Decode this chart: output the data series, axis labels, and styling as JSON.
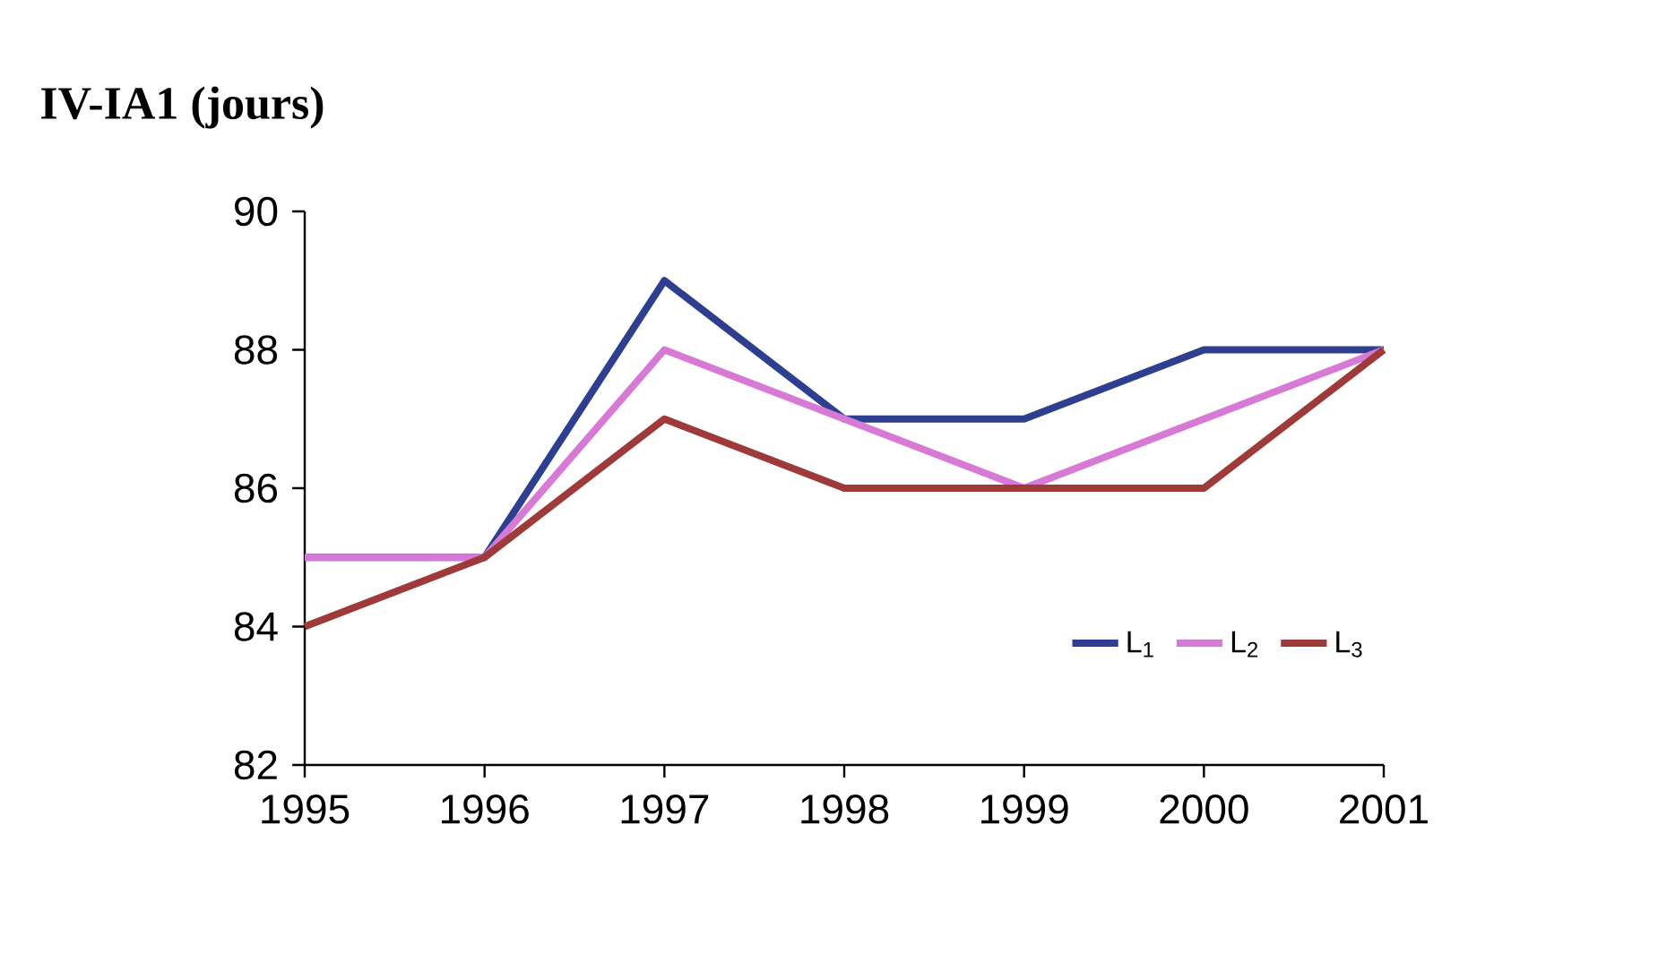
{
  "chart_data": {
    "type": "line",
    "title": "IV-IA1 (jours)",
    "x": [
      1995,
      1996,
      1997,
      1998,
      1999,
      2000,
      2001
    ],
    "xlim": [
      1995,
      2001
    ],
    "xticks": [
      1995,
      1996,
      1997,
      1998,
      1999,
      2000,
      2001
    ],
    "ylim": [
      82,
      90
    ],
    "yticks": [
      82,
      84,
      86,
      88,
      90
    ],
    "series": [
      {
        "name": "L$_{1}$",
        "color": "#2e3f8f",
        "values": [
          85,
          85,
          89,
          87,
          87,
          88,
          88
        ]
      },
      {
        "name": "L$_{2}$",
        "color": "#d67ad6",
        "values": [
          85,
          85,
          88,
          87,
          86,
          87,
          88
        ]
      },
      {
        "name": "L$_{3}$",
        "color": "#9e3a3a",
        "values": [
          84,
          85,
          87,
          86,
          86,
          86,
          88
        ]
      }
    ],
    "legend": "bottom right",
    "grid": false,
    "marker": "none",
    "line_style": "solid"
  }
}
